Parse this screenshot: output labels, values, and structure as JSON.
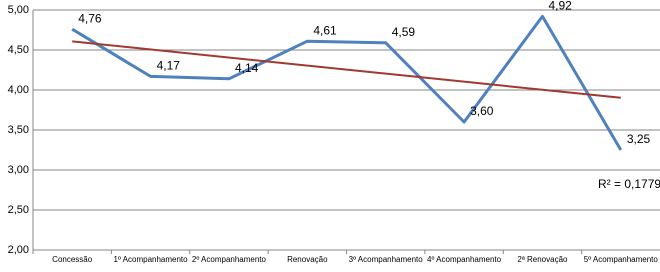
{
  "chart_data": {
    "type": "line",
    "categories": [
      "Concessão",
      "1º Acompanhamento",
      "2º Acompanhamento",
      "Renovação",
      "3º Acompanhamento",
      "4º Acompanhamento",
      "2ª Renovação",
      "5º Acompanhamento"
    ],
    "series": [
      {
        "color": "#4f81bd",
        "values": [
          4.76,
          4.17,
          4.14,
          4.61,
          4.59,
          3.6,
          4.92,
          3.25
        ],
        "value_labels": [
          "4,76",
          "4,17",
          "4,14",
          "4,61",
          "4,59",
          "3,60",
          "4,92",
          "3,25"
        ]
      }
    ],
    "ylim": [
      2,
      5
    ],
    "yticks": [
      {
        "value": 2,
        "label": "2,00"
      },
      {
        "value": 2.5,
        "label": "2,50"
      },
      {
        "value": 3,
        "label": "3,00"
      },
      {
        "value": 3.5,
        "label": "3,50"
      },
      {
        "value": 4,
        "label": "4,00"
      },
      {
        "value": 4.5,
        "label": "4,50"
      },
      {
        "value": 5,
        "label": "5,00"
      }
    ],
    "grid": true,
    "trendline": "linear",
    "trendline_color": "#a0392f",
    "annotation": "R² = 0,1779"
  }
}
